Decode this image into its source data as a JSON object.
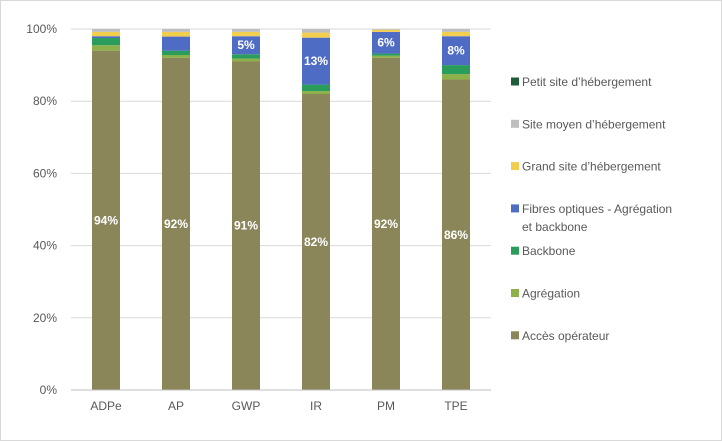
{
  "chart_data": {
    "type": "bar",
    "stacked": true,
    "normalized_percent": true,
    "categories": [
      "ADPe",
      "AP",
      "GWP",
      "IR",
      "PM",
      "TPE"
    ],
    "y_ticks": [
      "0%",
      "20%",
      "40%",
      "60%",
      "80%",
      "100%"
    ],
    "ylim": [
      0,
      100
    ],
    "grid": true,
    "legend_position": "right",
    "series": [
      {
        "name": "Accès opérateur",
        "color": "#8a865a",
        "values": [
          94,
          92,
          91,
          82,
          92,
          86
        ],
        "labels": [
          "94%",
          "92%",
          "91%",
          "82%",
          "92%",
          "86%"
        ]
      },
      {
        "name": "Agrégation",
        "color": "#8db04a",
        "values": [
          1.5,
          0.8,
          0.8,
          0.8,
          0.6,
          1.5
        ],
        "labels": [
          "",
          "",
          "",
          "",
          "",
          ""
        ]
      },
      {
        "name": "Backbone",
        "color": "#2a9d5c",
        "values": [
          2.0,
          1.2,
          1.2,
          1.8,
          0.6,
          2.5
        ],
        "labels": [
          "",
          "",
          "",
          "",
          "",
          ""
        ]
      },
      {
        "name": "Fibres optiques - Agrégation et backbone",
        "color": "#4f6cc4",
        "values": [
          0.5,
          3.9,
          5,
          13,
          6,
          8
        ],
        "labels": [
          "",
          "",
          "5%",
          "13%",
          "6%",
          "8%"
        ]
      },
      {
        "name": "Grand site d’hébergement",
        "color": "#f2ce4e",
        "values": [
          1.2,
          1.3,
          1.2,
          1.4,
          0.6,
          1.2
        ],
        "labels": [
          "",
          "",
          "",
          "",
          "",
          ""
        ]
      },
      {
        "name": "Site moyen d’hébergement",
        "color": "#bfbfbf",
        "values": [
          0.8,
          0.8,
          0.8,
          1.0,
          0.2,
          0.8
        ],
        "labels": [
          "",
          "",
          "",
          "",
          "",
          ""
        ]
      },
      {
        "name": "Petit site d’hébergement",
        "color": "#1f5c3a",
        "values": [
          0,
          0,
          0,
          0,
          0,
          0
        ],
        "labels": [
          "",
          "",
          "",
          "",
          "",
          ""
        ]
      }
    ],
    "legend_order": [
      "Petit site d’hébergement",
      "Site moyen d’hébergement",
      "Grand site d’hébergement",
      "Fibres optiques - Agrégation et backbone",
      "Backbone",
      "Agrégation",
      "Accès opérateur"
    ]
  }
}
